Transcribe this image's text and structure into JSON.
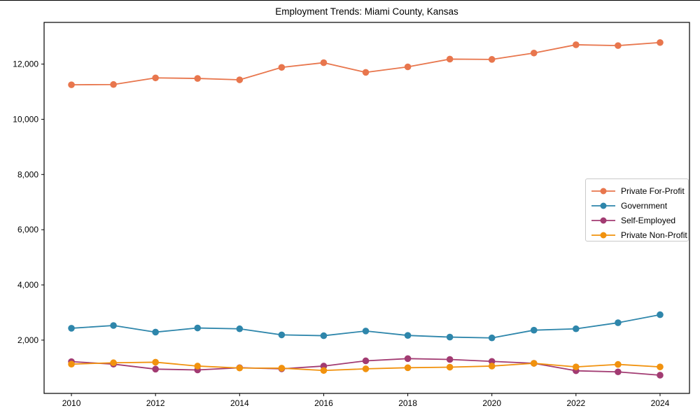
{
  "figure": {
    "background": "#ffffff",
    "text_color": "#000000",
    "spine_color": "#000000",
    "legend_border_color": "#c9c9c9"
  },
  "chart_data": {
    "type": "line",
    "title": "Employment Trends: Miami County, Kansas",
    "xlabel": "",
    "ylabel": "",
    "grid": false,
    "legend_position": "center right",
    "x": [
      2010,
      2011,
      2012,
      2013,
      2014,
      2015,
      2016,
      2017,
      2018,
      2019,
      2020,
      2021,
      2022,
      2023,
      2024
    ],
    "x_tick_labels": [
      "2010",
      "2012",
      "2014",
      "2016",
      "2018",
      "2020",
      "2022",
      "2024"
    ],
    "y_ticks": [
      2000,
      4000,
      6000,
      8000,
      10000,
      12000
    ],
    "y_tick_labels": [
      "2,000",
      "4,000",
      "6,000",
      "8,000",
      "10,000",
      "12,000"
    ],
    "xlim": [
      2009.35,
      2024.7
    ],
    "ylim": [
      70,
      13510
    ],
    "series": [
      {
        "name": "Private For-Profit",
        "color": "#e8764d",
        "values": [
          11250,
          11260,
          11500,
          11480,
          11430,
          11880,
          12050,
          11700,
          11900,
          12180,
          12170,
          12400,
          12700,
          12670,
          12780
        ]
      },
      {
        "name": "Government",
        "color": "#2e86ab",
        "values": [
          2430,
          2530,
          2290,
          2440,
          2410,
          2190,
          2160,
          2330,
          2170,
          2110,
          2080,
          2360,
          2410,
          2630,
          2920
        ]
      },
      {
        "name": "Self-Employed",
        "color": "#a23b72",
        "values": [
          1220,
          1130,
          950,
          920,
          1000,
          960,
          1060,
          1250,
          1330,
          1300,
          1230,
          1160,
          890,
          850,
          730
        ]
      },
      {
        "name": "Private Non-Profit",
        "color": "#f1920e",
        "values": [
          1130,
          1180,
          1200,
          1060,
          990,
          985,
          900,
          960,
          1000,
          1020,
          1060,
          1160,
          1030,
          1120,
          1030
        ]
      }
    ]
  }
}
